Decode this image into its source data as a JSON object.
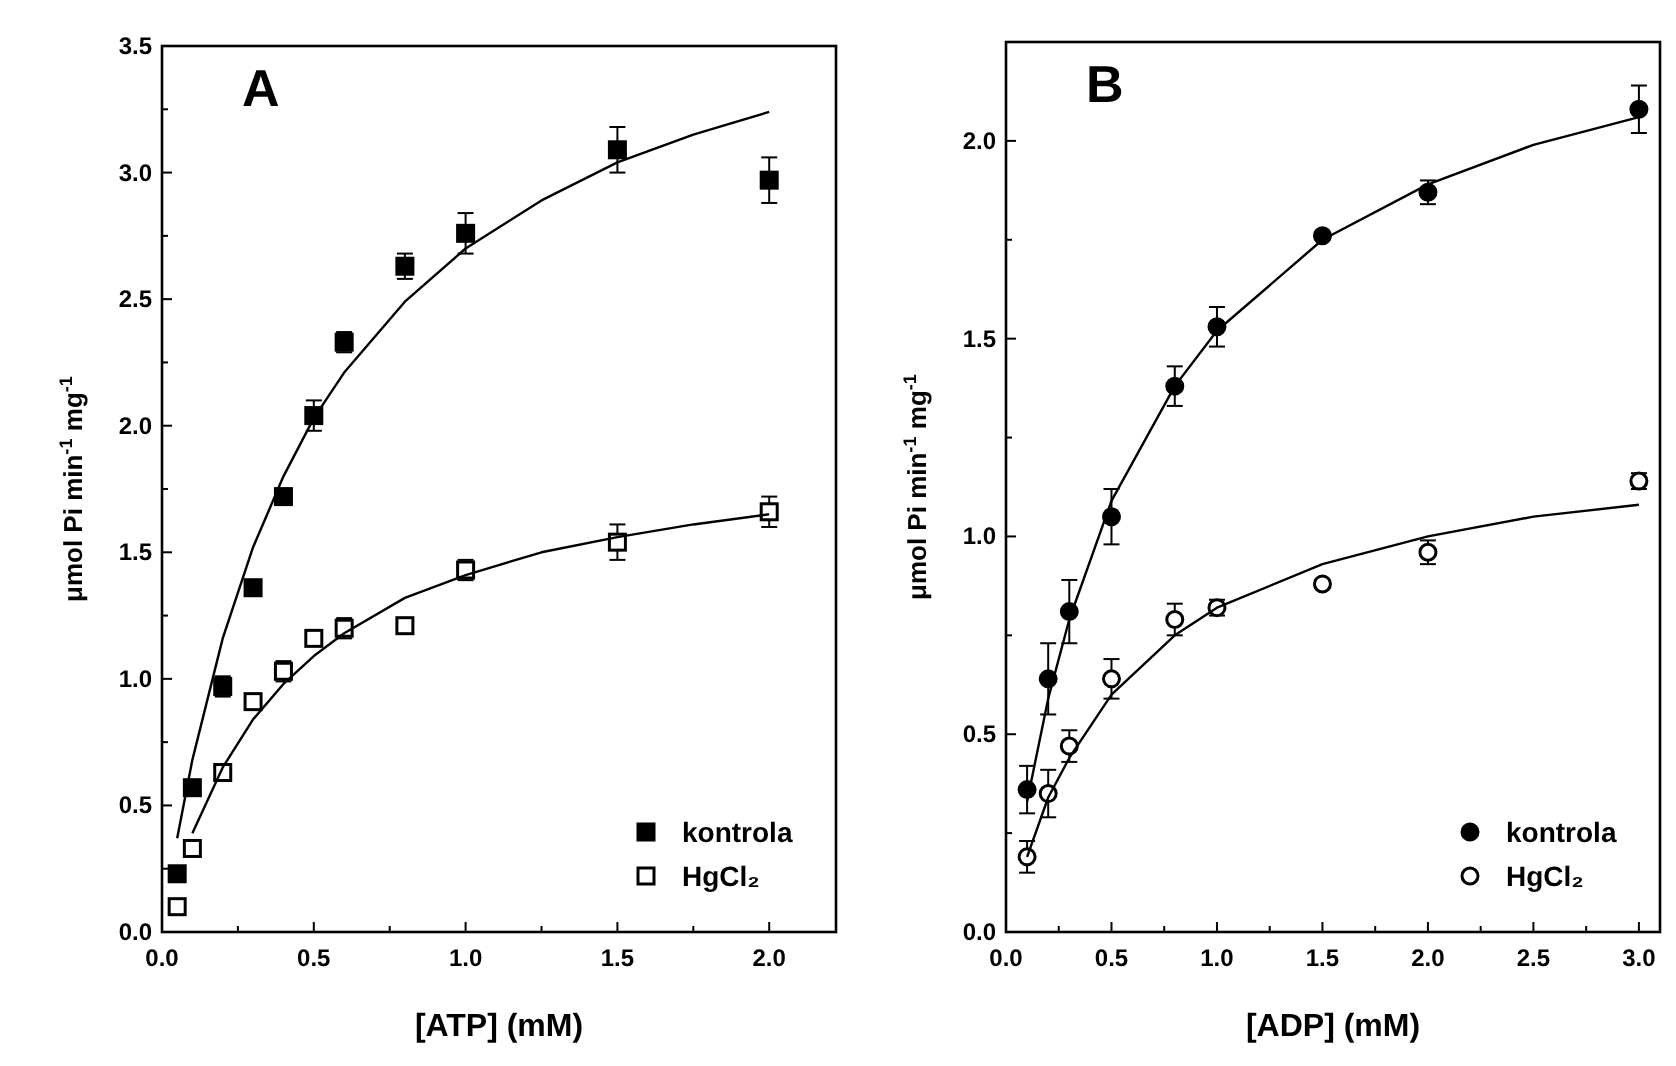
{
  "chart_data": [
    {
      "type": "scatter",
      "title": "A",
      "xlabel": "[ATP] (mM)",
      "ylabel": "μmol Pi min$^{-1}$ mg$^{-1}$",
      "legend": "bottom right",
      "xlim": [
        0,
        2.22
      ],
      "ylim": [
        0,
        3.5
      ],
      "xticks": [
        {
          "value": 0,
          "label": "0.0"
        },
        {
          "value": 0.25,
          "label": null
        },
        0.5,
        {
          "value": 0.75,
          "label": null
        },
        {
          "value": 1,
          "label": "1.0"
        },
        {
          "value": 1.25,
          "label": null
        },
        1.5,
        {
          "value": 1.75,
          "label": null
        },
        {
          "value": 2,
          "label": "2.0"
        }
      ],
      "yticks": [
        {
          "value": 0,
          "label": "0.0"
        },
        {
          "value": 0.25,
          "label": null
        },
        0.5,
        {
          "value": 0.75,
          "label": null
        },
        {
          "value": 1,
          "label": "1.0"
        },
        {
          "value": 1.25,
          "label": null
        },
        1.5,
        {
          "value": 1.75,
          "label": null
        },
        {
          "value": 2,
          "label": "2.0"
        },
        {
          "value": 2.25,
          "label": null
        },
        2.5,
        {
          "value": 2.75,
          "label": null
        },
        {
          "value": 3,
          "label": "3.0"
        },
        {
          "value": 3.25,
          "label": null
        },
        3.5
      ],
      "series": [
        {
          "name": "kontrola",
          "color": "#000000",
          "marker": "square",
          "x": [
            0.05,
            0.1,
            0.2,
            0.3,
            0.4,
            0.5,
            0.6,
            0.8,
            1.0,
            1.5,
            2.0
          ],
          "values": [
            0.23,
            0.57,
            0.97,
            1.36,
            1.72,
            2.04,
            2.33,
            2.63,
            2.76,
            3.09,
            2.97
          ],
          "errors": [
            0.03,
            0.03,
            0.04,
            0.03,
            0.03,
            0.06,
            0.04,
            0.05,
            0.08,
            0.09,
            0.09
          ]
        },
        {
          "name": "HgCl₂",
          "color": "#ffffff",
          "marker": "square",
          "x": [
            0.05,
            0.1,
            0.2,
            0.3,
            0.4,
            0.5,
            0.6,
            0.8,
            1.0,
            1.5,
            2.0
          ],
          "values": [
            0.1,
            0.33,
            0.63,
            0.91,
            1.03,
            1.16,
            1.2,
            1.21,
            1.43,
            1.54,
            1.66
          ],
          "errors": [
            0.02,
            0.02,
            0.03,
            0.03,
            0.04,
            0.03,
            0.04,
            0.02,
            0.04,
            0.07,
            0.06
          ]
        },
        {
          "type": "line",
          "color": "#000000",
          "x": [
            0.05,
            0.1,
            0.2,
            0.3,
            0.4,
            0.5,
            0.6,
            0.8,
            1.0,
            1.25,
            1.5,
            1.75,
            2.0
          ],
          "values": [
            0.37,
            0.68,
            1.16,
            1.52,
            1.8,
            2.03,
            2.21,
            2.49,
            2.7,
            2.89,
            3.04,
            3.15,
            3.24
          ]
        },
        {
          "type": "line",
          "color": "#000000",
          "x": [
            0.1,
            0.2,
            0.3,
            0.4,
            0.5,
            0.6,
            0.8,
            1.0,
            1.25,
            1.5,
            1.75,
            2.0
          ],
          "values": [
            0.39,
            0.65,
            0.84,
            0.98,
            1.09,
            1.18,
            1.32,
            1.41,
            1.5,
            1.56,
            1.61,
            1.65
          ]
        }
      ]
    },
    {
      "type": "scatter",
      "title": "B",
      "xlabel": "[ADP] (mM)",
      "ylabel": "μmol Pi min$^{-1}$ mg$^{-1}$",
      "legend": "bottom right",
      "xlim": [
        0,
        3.1
      ],
      "ylim": [
        0,
        2.25
      ],
      "xticks": [
        {
          "value": 0,
          "label": "0.0"
        },
        {
          "value": 0.25,
          "label": null
        },
        0.5,
        {
          "value": 0.75,
          "label": null
        },
        {
          "value": 1,
          "label": "1.0"
        },
        {
          "value": 1.25,
          "label": null
        },
        1.5,
        {
          "value": 1.75,
          "label": null
        },
        {
          "value": 2,
          "label": "2.0"
        },
        {
          "value": 2.25,
          "label": null
        },
        2.5,
        {
          "value": 2.75,
          "label": null
        },
        {
          "value": 3,
          "label": "3.0"
        }
      ],
      "yticks": [
        {
          "value": 0,
          "label": "0.0"
        },
        {
          "value": 0.25,
          "label": null
        },
        0.5,
        {
          "value": 0.75,
          "label": null
        },
        {
          "value": 1,
          "label": "1.0"
        },
        {
          "value": 1.25,
          "label": null
        },
        1.5,
        {
          "value": 1.75,
          "label": null
        },
        {
          "value": 2,
          "label": "2.0"
        }
      ],
      "series": [
        {
          "name": "kontrola",
          "color": "#000000",
          "marker": "circle",
          "x": [
            0.1,
            0.2,
            0.3,
            0.5,
            0.8,
            1.0,
            1.5,
            2.0,
            3.0
          ],
          "values": [
            0.36,
            0.64,
            0.81,
            1.05,
            1.38,
            1.53,
            1.76,
            1.87,
            2.08
          ],
          "errors": [
            0.06,
            0.09,
            0.08,
            0.07,
            0.05,
            0.05,
            0.01,
            0.03,
            0.06
          ]
        },
        {
          "name": "HgCl₂",
          "color": "#ffffff",
          "marker": "circle",
          "x": [
            0.1,
            0.2,
            0.3,
            0.5,
            0.8,
            1.0,
            1.5,
            2.0,
            3.0
          ],
          "values": [
            0.19,
            0.35,
            0.47,
            0.64,
            0.79,
            0.82,
            0.88,
            0.96,
            1.14
          ],
          "errors": [
            0.04,
            0.06,
            0.04,
            0.05,
            0.04,
            0.02,
            0.01,
            0.03,
            0.02
          ]
        },
        {
          "type": "line",
          "color": "#000000",
          "x": [
            0.1,
            0.2,
            0.3,
            0.5,
            0.8,
            1.0,
            1.5,
            2.0,
            2.5,
            3.0
          ],
          "values": [
            0.33,
            0.59,
            0.79,
            1.09,
            1.38,
            1.52,
            1.75,
            1.89,
            1.99,
            2.06
          ]
        },
        {
          "type": "line",
          "color": "#000000",
          "x": [
            0.1,
            0.2,
            0.3,
            0.5,
            0.8,
            1.0,
            1.5,
            2.0,
            2.5,
            3.0
          ],
          "values": [
            0.19,
            0.34,
            0.44,
            0.6,
            0.75,
            0.82,
            0.93,
            1.0,
            1.05,
            1.08
          ]
        }
      ]
    }
  ]
}
